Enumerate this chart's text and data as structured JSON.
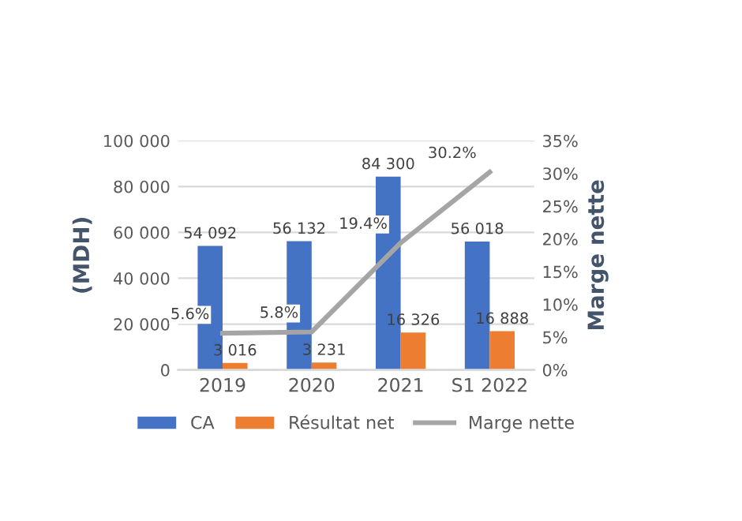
{
  "chart_data": {
    "type": "bar",
    "categories": [
      "2019",
      "2020",
      "2021",
      "S1 2022"
    ],
    "ylabel": "(MDH)",
    "y2label": "Marge nette",
    "ylim": [
      0,
      100000
    ],
    "yticks": [
      {
        "value": 0,
        "label": "0"
      },
      {
        "value": 20000,
        "label": "20 000"
      },
      {
        "value": 40000,
        "label": "40 000"
      },
      {
        "value": 60000,
        "label": "60 000"
      },
      {
        "value": 80000,
        "label": "80 000"
      },
      {
        "value": 100000,
        "label": "100 000"
      }
    ],
    "y2lim": [
      0,
      35
    ],
    "y2ticks": [
      {
        "value": 0,
        "label": "0%"
      },
      {
        "value": 5,
        "label": "5%"
      },
      {
        "value": 10,
        "label": "10%"
      },
      {
        "value": 15,
        "label": "15%"
      },
      {
        "value": 20,
        "label": "20%"
      },
      {
        "value": 25,
        "label": "25%"
      },
      {
        "value": 30,
        "label": "30%"
      },
      {
        "value": 35,
        "label": "35%"
      }
    ],
    "grid": "y",
    "legend": "bottom",
    "series": [
      {
        "name": "CA",
        "color": "#4472c4",
        "values": [
          54092,
          56132,
          84300,
          56018
        ],
        "value_labels": [
          "54 092",
          "56 132",
          "84 300",
          "56 018"
        ]
      },
      {
        "name": "Résultat net",
        "color": "#ed7d31",
        "values": [
          3016,
          3231,
          16326,
          16888
        ],
        "value_labels": [
          "3 016",
          "3 231",
          "16 326",
          "16 888"
        ]
      },
      {
        "name": "Marge nette",
        "type": "line",
        "axis": "y2",
        "color": "#a5a5a5",
        "values": [
          5.6,
          5.8,
          19.4,
          30.2
        ],
        "value_labels": [
          "5.6%",
          "5.8%",
          "19.4%",
          "30.2%"
        ]
      }
    ]
  }
}
